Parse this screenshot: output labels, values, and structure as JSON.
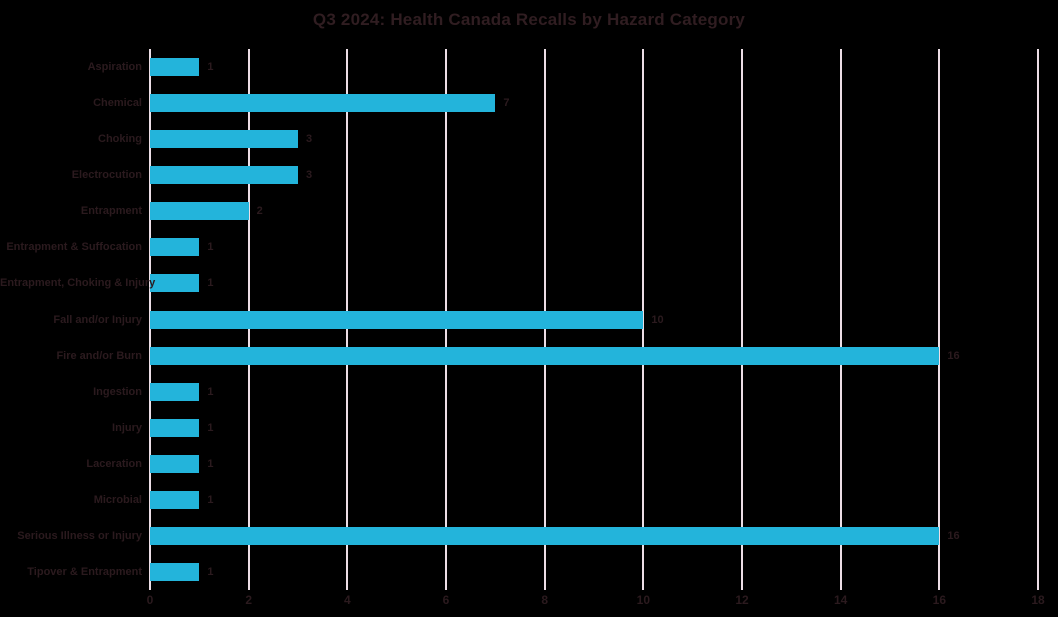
{
  "chart_data": {
    "type": "bar",
    "orientation": "horizontal",
    "title": "Q3 2024: Health Canada Recalls by Hazard Category",
    "categories": [
      "Aspiration",
      "Chemical",
      "Choking",
      "Electrocution",
      "Entrapment",
      "Entrapment & Suffocation",
      "Entrapment, Choking & Injury",
      "Fall and/or Injury",
      "Fire and/or Burn",
      "Ingestion",
      "Injury",
      "Laceration",
      "Microbial",
      "Serious Illness or Injury",
      "Tipover & Entrapment"
    ],
    "values": [
      1,
      7,
      3,
      3,
      2,
      1,
      1,
      10,
      16,
      1,
      1,
      1,
      1,
      16,
      1
    ],
    "data_labels": [
      "1",
      "7",
      "3",
      "3",
      "2",
      "1",
      "1",
      "10",
      "16",
      "1",
      "1",
      "1",
      "1",
      "16",
      "1"
    ],
    "xlabel": "",
    "ylabel": "",
    "xlim": [
      0,
      18
    ],
    "xticks": [
      "0",
      "2",
      "4",
      "6",
      "8",
      "10",
      "12",
      "14",
      "16",
      "18"
    ],
    "grid": true,
    "legend": false,
    "colors": {
      "background": "#000000",
      "bar": "#23b4db",
      "gridline": "#ecdee6",
      "title_text": "#301d21",
      "label_text": "#2b1a1e",
      "tick_text": "#2b1a1e"
    }
  }
}
